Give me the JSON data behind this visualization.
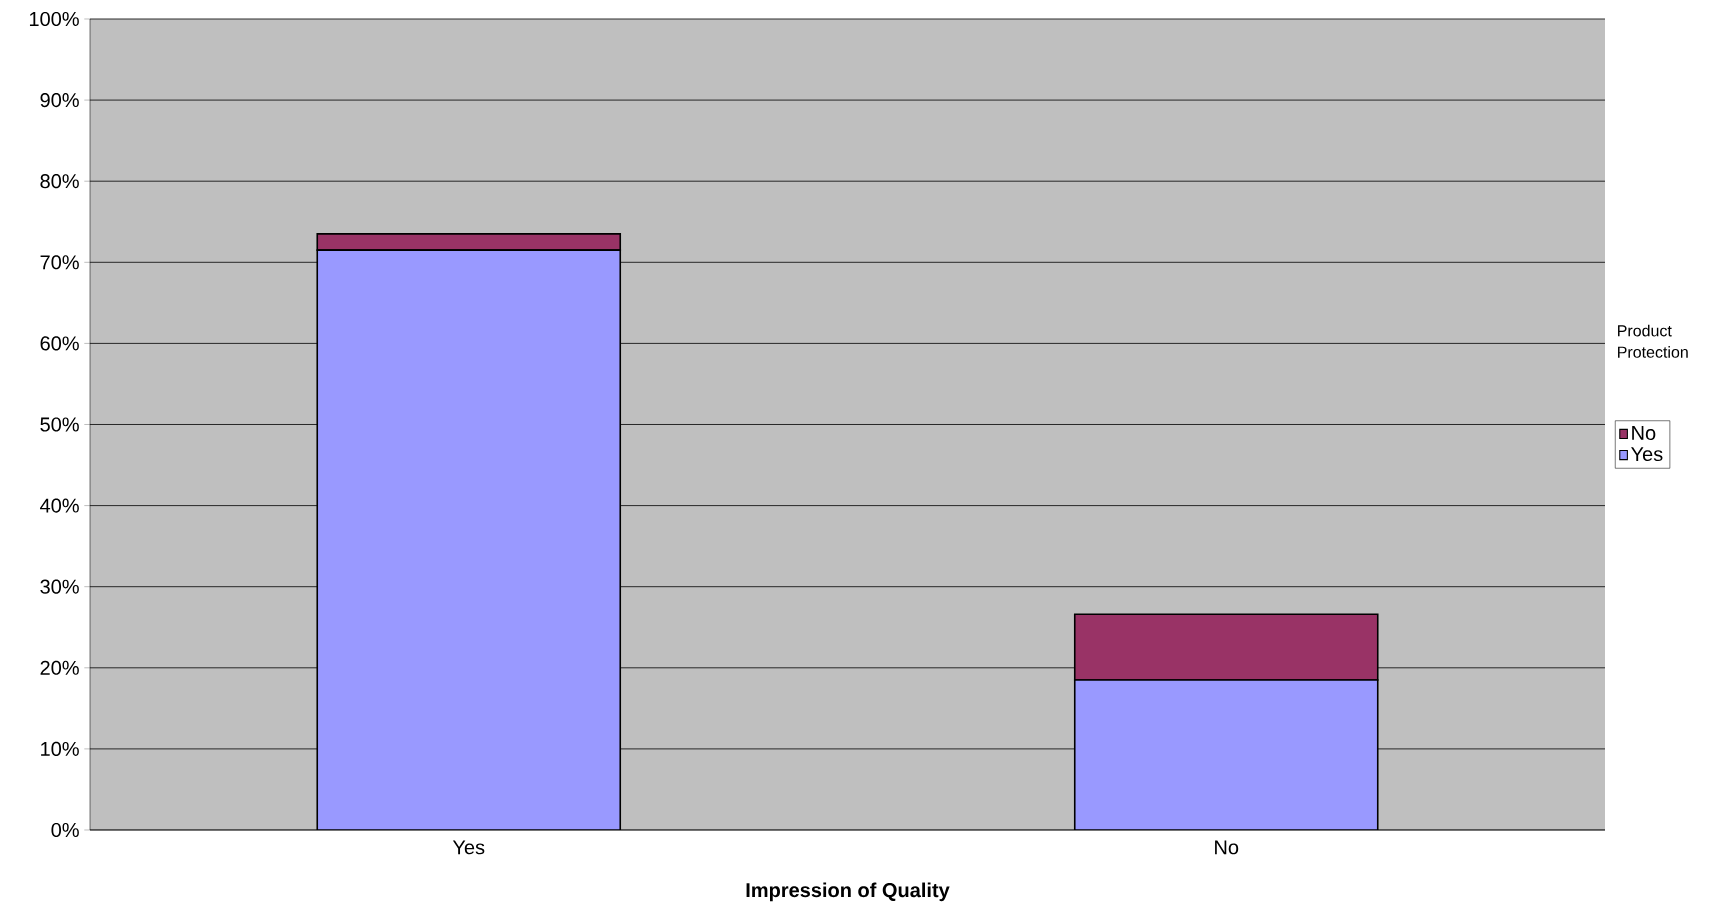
{
  "chart_data": {
    "type": "bar",
    "stacked": true,
    "xlabel": "Impression of Quality",
    "legend_title": "Product Protection",
    "legend": "right",
    "categories": [
      "Yes",
      "No"
    ],
    "series": [
      {
        "name": "Yes",
        "color": "#9999ff",
        "values": [
          71.5,
          18.5
        ]
      },
      {
        "name": "No",
        "color": "#993366",
        "values": [
          2.0,
          8.1
        ]
      }
    ],
    "ylim": [
      0,
      100
    ],
    "yticks": [
      {
        "value": 0,
        "label": "0%"
      },
      {
        "value": 10,
        "label": "10%"
      },
      {
        "value": 20,
        "label": "20%"
      },
      {
        "value": 30,
        "label": "30%"
      },
      {
        "value": 40,
        "label": "40%"
      },
      {
        "value": 50,
        "label": "50%"
      },
      {
        "value": 60,
        "label": "60%"
      },
      {
        "value": 70,
        "label": "70%"
      },
      {
        "value": 80,
        "label": "80%"
      },
      {
        "value": 90,
        "label": "90%"
      },
      {
        "value": 100,
        "label": "100%"
      }
    ],
    "grid": "y"
  }
}
